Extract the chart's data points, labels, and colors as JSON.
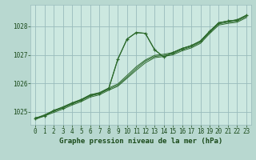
{
  "fig_bg_color": "#b8d8d0",
  "plot_bg_color": "#cce8e0",
  "grid_color": "#99bbbb",
  "line_color": "#2d6a2d",
  "marker_color": "#2d6a2d",
  "title": "Graphe pression niveau de la mer (hPa)",
  "title_color": "#1a4a1a",
  "title_bg": "#b8d8d0",
  "xlim": [
    -0.5,
    23.5
  ],
  "ylim": [
    1024.55,
    1028.75
  ],
  "yticks": [
    1025,
    1026,
    1027,
    1028
  ],
  "xticks": [
    0,
    1,
    2,
    3,
    4,
    5,
    6,
    7,
    8,
    9,
    10,
    11,
    12,
    13,
    14,
    15,
    16,
    17,
    18,
    19,
    20,
    21,
    22,
    23
  ],
  "series": [
    [
      1024.8,
      1024.85,
      1025.05,
      1025.15,
      1025.3,
      1025.42,
      1025.58,
      1025.65,
      1025.82,
      1026.85,
      1027.55,
      1027.78,
      1027.75,
      1027.18,
      1026.92,
      1027.08,
      1027.22,
      1027.32,
      1027.48,
      1027.82,
      1028.12,
      1028.18,
      1028.22,
      1028.38
    ],
    [
      1024.78,
      1024.9,
      1025.05,
      1025.18,
      1025.32,
      1025.44,
      1025.6,
      1025.68,
      1025.84,
      1025.98,
      1026.28,
      1026.58,
      1026.82,
      1026.98,
      1027.02,
      1027.08,
      1027.22,
      1027.32,
      1027.48,
      1027.82,
      1028.12,
      1028.18,
      1028.22,
      1028.38
    ],
    [
      1024.76,
      1024.88,
      1025.02,
      1025.14,
      1025.28,
      1025.4,
      1025.56,
      1025.64,
      1025.8,
      1025.94,
      1026.22,
      1026.52,
      1026.78,
      1026.94,
      1026.98,
      1027.04,
      1027.18,
      1027.28,
      1027.44,
      1027.78,
      1028.08,
      1028.14,
      1028.18,
      1028.34
    ],
    [
      1024.74,
      1024.86,
      1024.98,
      1025.1,
      1025.24,
      1025.36,
      1025.52,
      1025.6,
      1025.76,
      1025.9,
      1026.18,
      1026.46,
      1026.72,
      1026.9,
      1026.94,
      1027.0,
      1027.14,
      1027.24,
      1027.4,
      1027.74,
      1028.04,
      1028.1,
      1028.14,
      1028.3
    ]
  ],
  "main_series_y": [
    1024.78,
    1024.86,
    1025.05,
    1025.15,
    1025.3,
    1025.42,
    1025.6,
    1025.65,
    1025.82,
    1026.85,
    1027.55,
    1027.78,
    1027.75,
    1027.18,
    1026.92,
    1027.08,
    1027.22,
    1027.32,
    1027.48,
    1027.82,
    1028.12,
    1028.18,
    1028.22,
    1028.38
  ],
  "tick_fontsize": 5.5,
  "title_fontsize": 6.5
}
